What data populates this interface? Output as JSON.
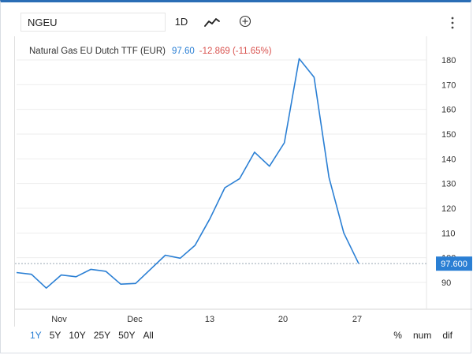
{
  "toolbar": {
    "symbol_value": "NGEU",
    "interval_label": "1D",
    "chart_type_icon": "line-chart-icon",
    "add_icon": "plus-circle-icon",
    "menu_icon": "vertical-dots-icon"
  },
  "legend": {
    "instrument": "Natural Gas EU Dutch TTF (EUR)",
    "price": "97.60",
    "change": "-12.869 (-11.65%)"
  },
  "ranges": [
    "1Y",
    "5Y",
    "10Y",
    "25Y",
    "50Y",
    "All"
  ],
  "active_range": "1Y",
  "modes": [
    "%",
    "num",
    "dif"
  ],
  "colors": {
    "line": "#2a7fd4",
    "price_label_bg": "#2a7fd4",
    "change": "#d9534f"
  },
  "chart_data": {
    "type": "line",
    "x_tick_labels": [
      "Nov",
      "Dec",
      "13",
      "20",
      "27"
    ],
    "y_tick_labels": [
      "90",
      "100",
      "110",
      "120",
      "130",
      "140",
      "150",
      "160",
      "170",
      "180"
    ],
    "ylim": [
      85,
      183
    ],
    "last_price_label": "97.600",
    "last_value": 97.6,
    "series": [
      {
        "values": [
          94.0,
          93.3,
          87.7,
          93.0,
          92.3,
          95.3,
          94.5,
          89.3,
          89.6,
          95.3,
          101.0,
          99.8,
          105.0,
          115.8,
          128.3,
          132.0,
          142.7,
          137.0,
          146.5,
          180.5,
          173.0,
          132.5,
          110.0,
          97.6
        ]
      }
    ]
  }
}
